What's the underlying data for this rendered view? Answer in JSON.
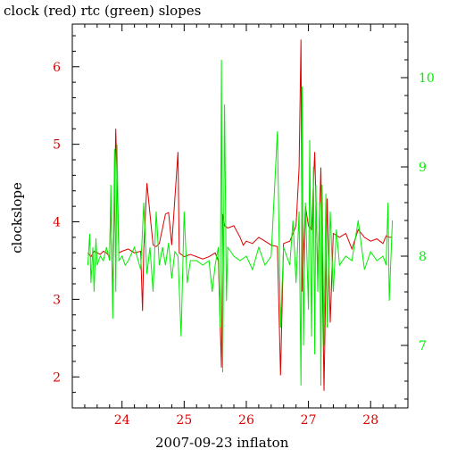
{
  "chart_data": {
    "type": "line",
    "title": "clock (red) rtc (green) slopes",
    "xlabel": "2007-09-23 inflaton",
    "ylabel": "clockslope",
    "xlim": [
      23.2,
      28.6
    ],
    "ylim_left": [
      1.6,
      6.55
    ],
    "ylim_right": [
      6.3,
      10.6
    ],
    "x_ticks": [
      24,
      25,
      26,
      27,
      28
    ],
    "y_ticks_left": [
      2,
      3,
      4,
      5,
      6
    ],
    "y_ticks_right": [
      7,
      8,
      9,
      10
    ],
    "grid": false,
    "colors": {
      "clock": "#dd0000",
      "rtc": "#00ee00",
      "axis": "#000000",
      "tick_left": "#dd0000",
      "tick_right": "#00ee00"
    },
    "series": [
      {
        "name": "clock",
        "axis": "left",
        "x": [
          23.45,
          23.5,
          23.55,
          23.6,
          23.65,
          23.7,
          23.75,
          23.8,
          23.82,
          23.85,
          23.9,
          23.95,
          24.0,
          24.1,
          24.2,
          24.3,
          24.33,
          24.35,
          24.4,
          24.5,
          24.55,
          24.6,
          24.7,
          24.75,
          24.8,
          24.9,
          24.92,
          24.95,
          25.0,
          25.1,
          25.2,
          25.3,
          25.4,
          25.5,
          25.55,
          25.6,
          25.62,
          25.65,
          25.7,
          25.8,
          25.9,
          25.95,
          26.0,
          26.1,
          26.2,
          26.3,
          26.4,
          26.5,
          26.55,
          26.6,
          26.7,
          26.8,
          26.85,
          26.88,
          26.9,
          26.95,
          27.0,
          27.05,
          27.1,
          27.15,
          27.2,
          27.25,
          27.3,
          27.35,
          27.4,
          27.5,
          27.6,
          27.7,
          27.8,
          27.9,
          28.0,
          28.1,
          28.2,
          28.25,
          28.3,
          28.35
        ],
        "y": [
          3.6,
          3.55,
          3.62,
          3.6,
          3.58,
          3.62,
          3.6,
          3.55,
          4.3,
          3.02,
          5.2,
          3.6,
          3.62,
          3.65,
          3.6,
          3.62,
          2.85,
          3.65,
          4.5,
          3.7,
          3.68,
          3.72,
          4.1,
          4.12,
          3.7,
          4.9,
          3.6,
          3.58,
          3.55,
          3.58,
          3.55,
          3.52,
          3.55,
          3.6,
          3.5,
          2.12,
          4.1,
          3.95,
          3.92,
          3.95,
          3.8,
          3.7,
          3.75,
          3.72,
          3.8,
          3.75,
          3.7,
          3.68,
          2.02,
          3.72,
          3.75,
          3.95,
          4.7,
          6.35,
          3.1,
          4.2,
          3.95,
          3.9,
          4.9,
          3.3,
          4.7,
          1.82,
          4.3,
          2.7,
          3.85,
          3.8,
          3.85,
          3.65,
          3.9,
          3.8,
          3.75,
          3.78,
          3.72,
          3.82,
          3.8,
          3.8
        ]
      },
      {
        "name": "rtc",
        "axis": "right",
        "x": [
          23.45,
          23.48,
          23.5,
          23.53,
          23.55,
          23.58,
          23.6,
          23.65,
          23.7,
          23.75,
          23.8,
          23.82,
          23.85,
          23.88,
          23.9,
          23.92,
          23.95,
          24.0,
          24.05,
          24.1,
          24.2,
          24.3,
          24.35,
          24.4,
          24.45,
          24.5,
          24.55,
          24.6,
          24.65,
          24.7,
          24.75,
          24.8,
          24.85,
          24.9,
          24.95,
          25.0,
          25.05,
          25.1,
          25.2,
          25.3,
          25.4,
          25.45,
          25.5,
          25.55,
          25.58,
          25.6,
          25.62,
          25.65,
          25.68,
          25.7,
          25.8,
          25.9,
          26.0,
          26.1,
          26.2,
          26.3,
          26.4,
          26.5,
          26.55,
          26.6,
          26.7,
          26.75,
          26.8,
          26.85,
          26.88,
          26.9,
          26.92,
          26.95,
          27.0,
          27.02,
          27.05,
          27.08,
          27.1,
          27.12,
          27.15,
          27.18,
          27.2,
          27.22,
          27.25,
          27.28,
          27.3,
          27.35,
          27.4,
          27.45,
          27.5,
          27.6,
          27.7,
          27.8,
          27.9,
          28.0,
          28.1,
          28.2,
          28.25,
          28.28,
          28.3,
          28.35
        ],
        "y": [
          7.9,
          8.25,
          7.7,
          8.1,
          7.6,
          8.2,
          7.9,
          8.0,
          7.95,
          8.1,
          7.95,
          8.8,
          7.3,
          9.2,
          7.6,
          9.25,
          7.95,
          8.0,
          7.9,
          7.95,
          8.1,
          7.85,
          8.6,
          7.8,
          8.1,
          7.6,
          8.5,
          7.9,
          8.1,
          7.9,
          8.15,
          7.75,
          8.05,
          8.0,
          7.1,
          8.5,
          7.7,
          7.95,
          7.95,
          7.9,
          7.95,
          7.6,
          7.9,
          8.1,
          7.2,
          10.2,
          6.7,
          9.7,
          7.5,
          8.1,
          8.0,
          7.95,
          8.0,
          7.85,
          8.1,
          7.9,
          8.0,
          9.4,
          7.2,
          8.1,
          7.9,
          8.4,
          7.7,
          8.5,
          6.55,
          9.9,
          7.0,
          8.6,
          7.4,
          9.3,
          7.1,
          9.0,
          6.9,
          8.8,
          7.6,
          8.6,
          6.55,
          8.8,
          7.0,
          8.7,
          7.2,
          8.5,
          7.6,
          8.3,
          7.9,
          8.0,
          7.95,
          8.4,
          7.85,
          8.05,
          7.95,
          8.0,
          7.9,
          8.6,
          7.5,
          8.4
        ]
      }
    ]
  }
}
